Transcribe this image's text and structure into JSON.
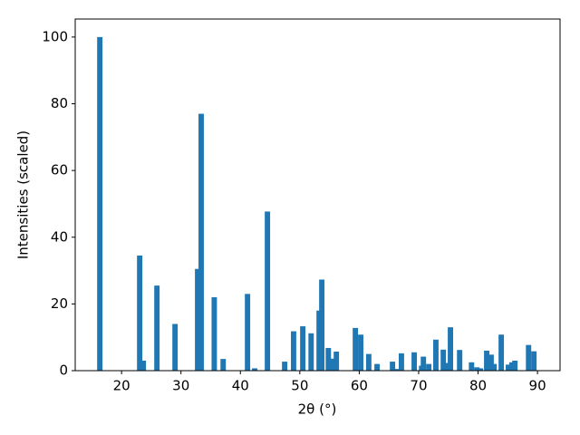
{
  "chart_data": {
    "type": "bar",
    "xlabel": "2θ (°)",
    "ylabel": "Intensities (scaled)",
    "x": [
      16.34,
      23.05,
      23.66,
      25.95,
      29.0,
      32.8,
      33.4,
      35.6,
      37.1,
      41.2,
      42.4,
      44.55,
      47.45,
      48.95,
      50.5,
      51.9,
      53.25,
      53.7,
      54.8,
      55.4,
      56.15,
      59.35,
      60.25,
      61.6,
      63.0,
      65.6,
      66.2,
      67.1,
      69.25,
      70.5,
      70.8,
      71.7,
      72.9,
      74.15,
      74.6,
      75.35,
      76.9,
      78.9,
      79.8,
      80.4,
      81.45,
      82.2,
      82.7,
      83.9,
      85.1,
      85.7,
      86.2,
      88.5,
      89.4
    ],
    "values": [
      100,
      34.5,
      3,
      25.5,
      14,
      30.5,
      77,
      22,
      3.5,
      23,
      0.7,
      47.7,
      2.7,
      11.8,
      13.3,
      11.2,
      18,
      27.3,
      6.8,
      3.6,
      5.7,
      12.8,
      10.8,
      5,
      2,
      2.7,
      0.5,
      5.2,
      5.5,
      1.5,
      4.2,
      2,
      9.3,
      6.3,
      2.3,
      13,
      6.2,
      2.5,
      1,
      0.7,
      6,
      4.8,
      2,
      10.8,
      1.8,
      2.5,
      3,
      7.7,
      5.8
    ],
    "color": "#1f77b4",
    "xlim": [
      12.2,
      93.8
    ],
    "xticks": [
      20,
      30,
      40,
      50,
      60,
      70,
      80,
      90
    ],
    "ylim": [
      0,
      105.4
    ],
    "yticks": [
      0,
      20,
      40,
      60,
      80,
      100
    ]
  }
}
